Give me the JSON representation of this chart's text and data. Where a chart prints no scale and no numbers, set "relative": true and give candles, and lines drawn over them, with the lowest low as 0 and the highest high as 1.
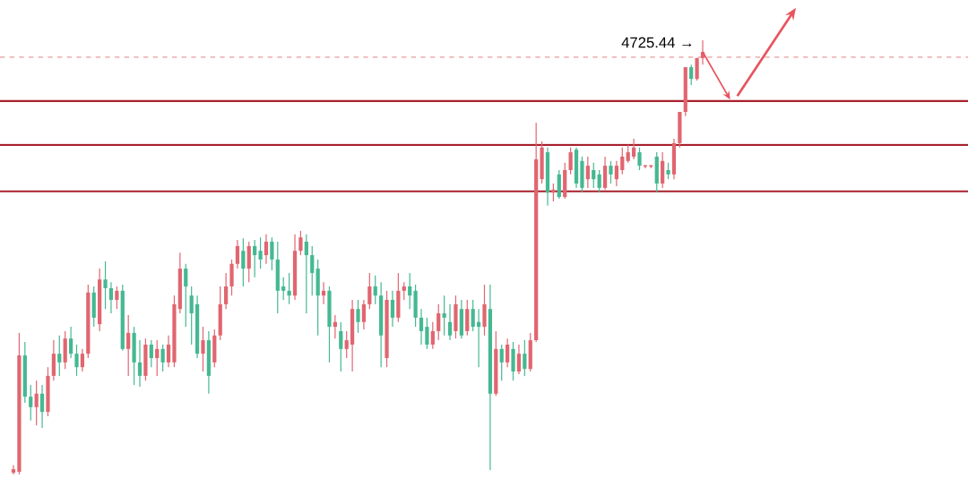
{
  "chart_data": {
    "type": "candlestick",
    "relative": true,
    "categories": [
      null,
      null,
      null,
      null,
      null,
      null,
      null,
      null,
      null,
      null,
      null,
      null,
      null,
      null,
      null,
      null,
      null,
      null,
      null,
      null,
      null,
      null,
      null,
      null,
      null,
      null,
      null,
      null,
      null,
      null,
      null,
      null,
      null,
      null,
      null,
      null,
      null,
      null,
      null,
      null,
      null,
      null,
      null,
      null,
      null,
      null,
      null,
      null,
      null,
      null,
      null,
      null,
      null,
      null,
      null,
      null,
      null,
      null,
      null,
      null,
      null,
      null,
      null,
      null,
      null,
      null,
      null,
      null,
      null,
      null,
      null,
      null,
      null,
      null,
      null,
      null,
      null,
      null,
      null,
      null,
      null,
      null,
      null,
      null,
      null,
      null,
      null,
      null,
      null,
      null,
      null,
      null,
      null,
      null,
      null,
      null,
      null,
      null,
      null,
      null,
      null,
      null,
      null,
      null,
      null,
      null,
      null,
      null,
      null,
      null,
      null,
      null,
      null,
      null,
      null,
      null,
      null,
      null,
      null,
      null,
      null
    ],
    "ohlc": [
      [
        0.004,
        0.021,
        0,
        0.012
      ],
      [
        0.006,
        0.326,
        0,
        0.274
      ],
      [
        0.274,
        0.305,
        0.165,
        0.179
      ],
      [
        0.179,
        0.206,
        0.124,
        0.155
      ],
      [
        0.155,
        0.216,
        0.113,
        0.186
      ],
      [
        0.186,
        0.206,
        0.107,
        0.144
      ],
      [
        0.144,
        0.247,
        0.134,
        0.227
      ],
      [
        0.227,
        0.309,
        0.216,
        0.278
      ],
      [
        0.278,
        0.32,
        0.227,
        0.258
      ],
      [
        0.258,
        0.33,
        0.243,
        0.313
      ],
      [
        0.313,
        0.34,
        0.268,
        0.278
      ],
      [
        0.278,
        0.299,
        0.227,
        0.247
      ],
      [
        0.247,
        0.289,
        0.237,
        0.278
      ],
      [
        0.278,
        0.437,
        0.268,
        0.419
      ],
      [
        0.419,
        0.433,
        0.34,
        0.361
      ],
      [
        0.346,
        0.474,
        0.33,
        0.449
      ],
      [
        0.449,
        0.491,
        0.381,
        0.429
      ],
      [
        0.429,
        0.443,
        0.371,
        0.402
      ],
      [
        0.402,
        0.433,
        0.381,
        0.423
      ],
      [
        0.423,
        0.437,
        0.285,
        0.289
      ],
      [
        0.289,
        0.367,
        0.227,
        0.326
      ],
      [
        0.326,
        0.34,
        0.206,
        0.258
      ],
      [
        0.258,
        0.309,
        0.202,
        0.227
      ],
      [
        0.227,
        0.313,
        0.216,
        0.299
      ],
      [
        0.299,
        0.309,
        0.247,
        0.268
      ],
      [
        0.268,
        0.309,
        0.227,
        0.289
      ],
      [
        0.289,
        0.299,
        0.237,
        0.258
      ],
      [
        0.258,
        0.32,
        0.247,
        0.299
      ],
      [
        0.258,
        0.412,
        0.247,
        0.392
      ],
      [
        0.381,
        0.511,
        0.371,
        0.474
      ],
      [
        0.474,
        0.485,
        0.34,
        0.433
      ],
      [
        0.412,
        0.433,
        0.299,
        0.371
      ],
      [
        0.392,
        0.412,
        0.268,
        0.278
      ],
      [
        0.278,
        0.34,
        0.237,
        0.309
      ],
      [
        0.309,
        0.33,
        0.186,
        0.227
      ],
      [
        0.258,
        0.334,
        0.247,
        0.32
      ],
      [
        0.32,
        0.433,
        0.309,
        0.392
      ],
      [
        0.392,
        0.464,
        0.381,
        0.433
      ],
      [
        0.433,
        0.495,
        0.412,
        0.485
      ],
      [
        0.485,
        0.54,
        0.474,
        0.526
      ],
      [
        0.515,
        0.544,
        0.433,
        0.474
      ],
      [
        0.474,
        0.536,
        0.443,
        0.526
      ],
      [
        0.526,
        0.54,
        0.454,
        0.505
      ],
      [
        0.515,
        0.546,
        0.474,
        0.495
      ],
      [
        0.505,
        0.553,
        0.485,
        0.536
      ],
      [
        0.536,
        0.546,
        0.47,
        0.495
      ],
      [
        0.495,
        0.536,
        0.371,
        0.423
      ],
      [
        0.433,
        0.454,
        0.402,
        0.423
      ],
      [
        0.423,
        0.464,
        0.392,
        0.412
      ],
      [
        0.412,
        0.553,
        0.402,
        0.515
      ],
      [
        0.515,
        0.561,
        0.505,
        0.546
      ],
      [
        0.536,
        0.553,
        0.371,
        0.505
      ],
      [
        0.505,
        0.526,
        0.412,
        0.464
      ],
      [
        0.474,
        0.495,
        0.32,
        0.412
      ],
      [
        0.412,
        0.443,
        0.392,
        0.423
      ],
      [
        0.423,
        0.433,
        0.258,
        0.34
      ],
      [
        0.34,
        0.367,
        0.313,
        0.351
      ],
      [
        0.33,
        0.351,
        0.237,
        0.289
      ],
      [
        0.289,
        0.33,
        0.268,
        0.309
      ],
      [
        0.299,
        0.402,
        0.237,
        0.381
      ],
      [
        0.381,
        0.402,
        0.326,
        0.351
      ],
      [
        0.351,
        0.402,
        0.334,
        0.392
      ],
      [
        0.392,
        0.464,
        0.381,
        0.433
      ],
      [
        0.433,
        0.458,
        0.392,
        0.412
      ],
      [
        0.412,
        0.443,
        0.247,
        0.32
      ],
      [
        0.268,
        0.423,
        0.247,
        0.402
      ],
      [
        0.402,
        0.423,
        0.34,
        0.361
      ],
      [
        0.361,
        0.464,
        0.351,
        0.423
      ],
      [
        0.423,
        0.443,
        0.402,
        0.433
      ],
      [
        0.433,
        0.464,
        0.381,
        0.412
      ],
      [
        0.423,
        0.437,
        0.34,
        0.361
      ],
      [
        0.361,
        0.381,
        0.299,
        0.33
      ],
      [
        0.34,
        0.361,
        0.289,
        0.299
      ],
      [
        0.299,
        0.351,
        0.289,
        0.33
      ],
      [
        0.33,
        0.392,
        0.309,
        0.371
      ],
      [
        0.371,
        0.412,
        0.32,
        0.361
      ],
      [
        0.351,
        0.392,
        0.309,
        0.32
      ],
      [
        0.33,
        0.412,
        0.313,
        0.392
      ],
      [
        0.381,
        0.402,
        0.313,
        0.32
      ],
      [
        0.33,
        0.402,
        0.32,
        0.381
      ],
      [
        0.381,
        0.402,
        0.33,
        0.34
      ],
      [
        0.351,
        0.381,
        0.247,
        0.34
      ],
      [
        0.34,
        0.437,
        0.32,
        0.392
      ],
      [
        0.381,
        0.437,
        0.01,
        0.186
      ],
      [
        0.186,
        0.33,
        0.181,
        0.289
      ],
      [
        0.289,
        0.299,
        0.216,
        0.258
      ],
      [
        0.258,
        0.313,
        0.247,
        0.299
      ],
      [
        0.289,
        0.305,
        0.216,
        0.237
      ],
      [
        0.237,
        0.299,
        0.231,
        0.278
      ],
      [
        0.278,
        0.309,
        0.227,
        0.243
      ],
      [
        0.243,
        0.326,
        0.237,
        0.309
      ],
      [
        0.309,
        0.81,
        0.305,
        0.726
      ],
      [
        0.68,
        0.767,
        0.67,
        0.753
      ],
      [
        0.742,
        0.753,
        0.619,
        0.649
      ],
      [
        0.649,
        0.67,
        0.629,
        0.656
      ],
      [
        0.691,
        0.701,
        0.635,
        0.639
      ],
      [
        0.639,
        0.718,
        0.635,
        0.701
      ],
      [
        0.701,
        0.753,
        0.691,
        0.742
      ],
      [
        0.748,
        0.753,
        0.66,
        0.67
      ],
      [
        0.722,
        0.732,
        0.649,
        0.66
      ],
      [
        0.68,
        0.732,
        0.66,
        0.711
      ],
      [
        0.701,
        0.718,
        0.66,
        0.68
      ],
      [
        0.691,
        0.701,
        0.649,
        0.66
      ],
      [
        0.66,
        0.732,
        0.656,
        0.711
      ],
      [
        0.711,
        0.722,
        0.67,
        0.691
      ],
      [
        0.68,
        0.722,
        0.664,
        0.711
      ],
      [
        0.701,
        0.753,
        0.691,
        0.732
      ],
      [
        0.722,
        0.759,
        0.718,
        0.742
      ],
      [
        0.732,
        0.773,
        0.726,
        0.753
      ],
      [
        0.742,
        0.753,
        0.701,
        0.711
      ],
      [
        0.709,
        0.713,
        0.705,
        0.709
      ],
      [
        0.709,
        0.713,
        0.705,
        0.709
      ],
      [
        0.732,
        0.742,
        0.649,
        0.67
      ],
      [
        0.67,
        0.742,
        0.66,
        0.722
      ],
      [
        0.701,
        0.718,
        0.68,
        0.691
      ],
      [
        0.691,
        0.773,
        0.68,
        0.763
      ],
      [
        0.763,
        0.835,
        0.753,
        0.835
      ],
      [
        0.835,
        0.938,
        0.825,
        0.938
      ],
      [
        0.938,
        0.944,
        0.897,
        0.911
      ],
      [
        0.911,
        0.959,
        0.907,
        0.959
      ],
      [
        0.959,
        1,
        0.944,
        0.973
      ]
    ],
    "ref_lines": [
      {
        "axis": "y",
        "value": 0.961,
        "color": "#e07a7a",
        "line_style": "dashed"
      },
      {
        "axis": "y",
        "value": 0.86,
        "color": "#a8202c",
        "line_style": "solid"
      },
      {
        "axis": "y",
        "value": 0.759,
        "color": "#a8202c",
        "line_style": "solid"
      },
      {
        "axis": "y",
        "value": 0.652,
        "color": "#a8202c",
        "line_style": "solid"
      }
    ],
    "annotations": [
      "4725.44 →"
    ]
  }
}
